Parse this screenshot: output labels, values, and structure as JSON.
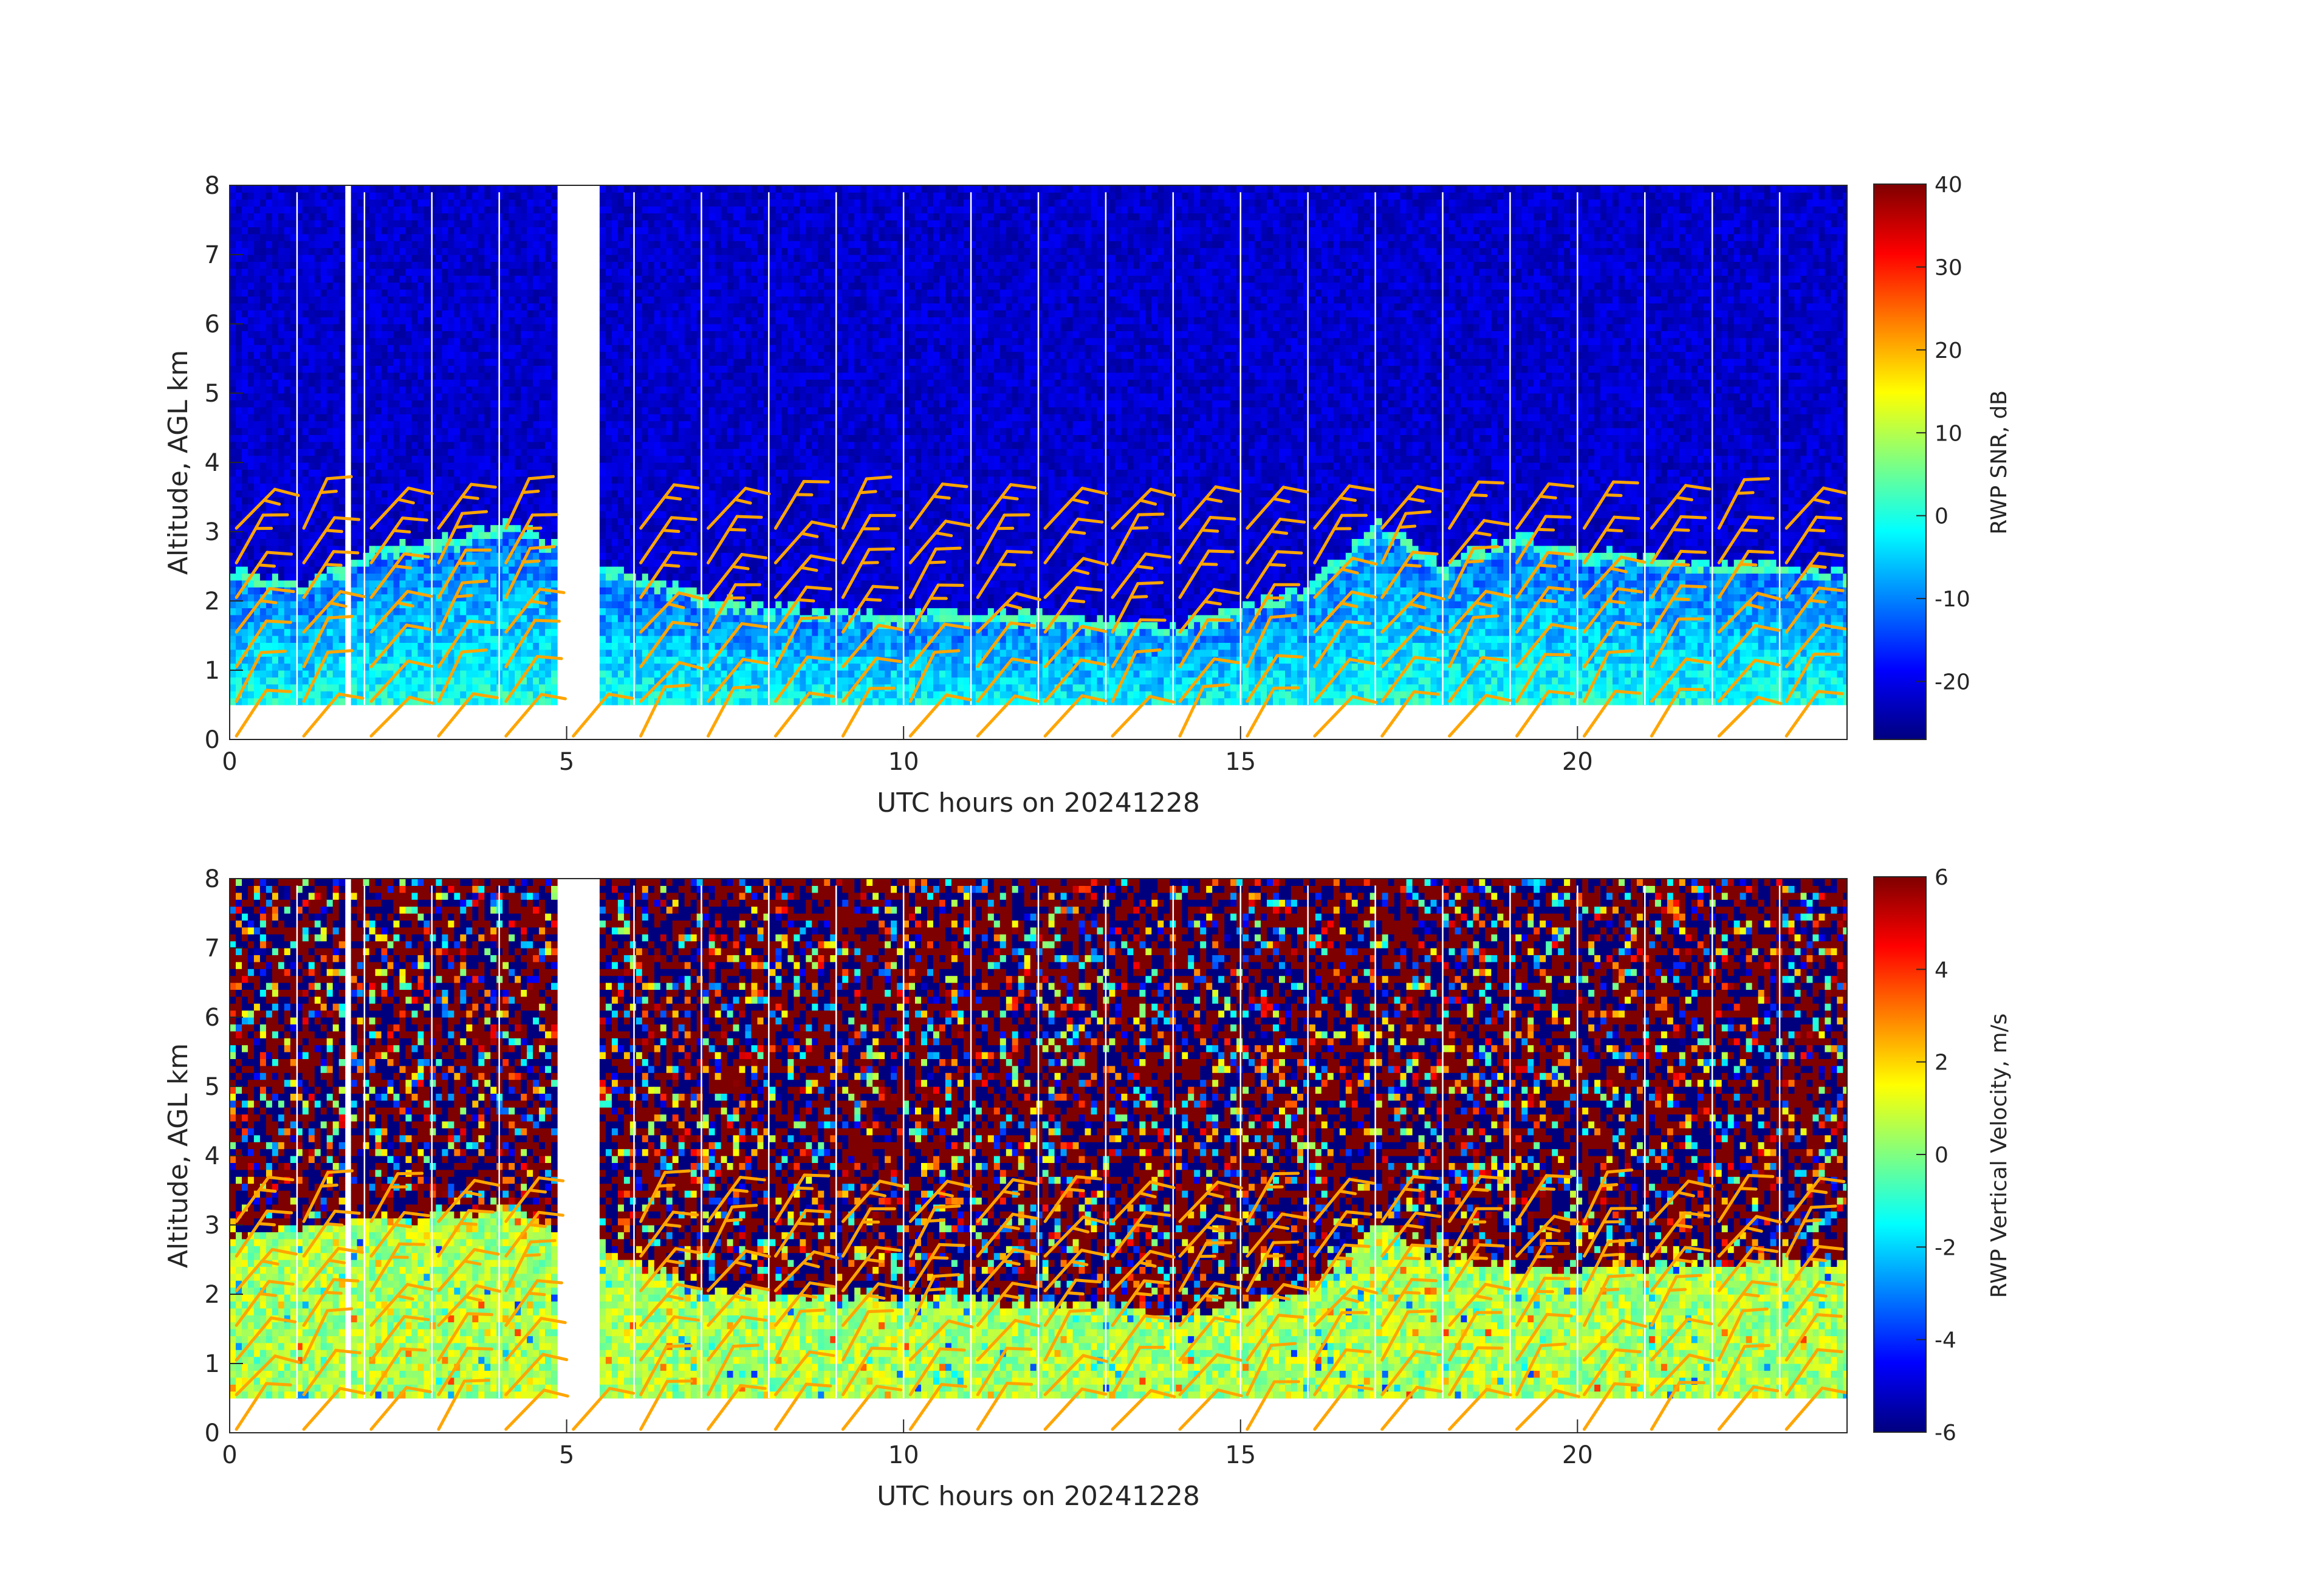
{
  "chart_data": [
    {
      "type": "heatmap",
      "xlabel": "UTC hours on 20241228",
      "ylabel": "Altitude, AGL km",
      "xlim": [
        0,
        24
      ],
      "ylim": [
        0,
        8
      ],
      "xticks": [
        0,
        5,
        10,
        15,
        20
      ],
      "yticks": [
        0,
        1,
        2,
        3,
        4,
        5,
        6,
        7,
        8
      ],
      "data_altitude_range_km": [
        0.5,
        7.9
      ],
      "data_gaps_utc_hours": [
        [
          1.72,
          1.78
        ],
        [
          1.85,
          1.93
        ],
        [
          4.9,
          5.5
        ]
      ],
      "colorbar": {
        "label": "RWP SNR, dB",
        "range": [
          -27,
          40
        ],
        "ticks": [
          -20,
          -10,
          0,
          10,
          20,
          30,
          40
        ],
        "colormap": "jet"
      },
      "field_description_levels": {
        "background_dB": -20,
        "boundary_layer_dB": 0,
        "boundary_layer_top_km": [
          [
            0,
            2.4
          ],
          [
            1,
            2.2
          ],
          [
            2,
            2.7
          ],
          [
            3,
            2.8
          ],
          [
            4,
            3.1
          ],
          [
            5.5,
            2.5
          ],
          [
            7,
            2.0
          ],
          [
            9,
            1.8
          ],
          [
            11,
            1.8
          ],
          [
            13,
            1.7
          ],
          [
            14,
            1.6
          ],
          [
            16,
            2.2
          ],
          [
            17,
            3.1
          ],
          [
            18,
            2.5
          ],
          [
            19,
            2.9
          ],
          [
            20,
            2.7
          ],
          [
            22,
            2.5
          ],
          [
            24,
            2.4
          ]
        ]
      },
      "overlay": {
        "type": "wind_barbs",
        "color": "#FFA500",
        "times_utc": [
          0,
          1,
          2,
          3,
          4,
          5,
          6,
          7,
          8,
          9,
          10,
          11,
          12,
          13,
          14,
          15,
          16,
          17,
          18,
          19,
          20,
          21,
          22,
          23
        ],
        "altitudes_km": [
          0.0,
          0.5,
          1.0,
          1.5,
          2.0,
          2.5,
          3.0
        ]
      }
    },
    {
      "type": "heatmap",
      "xlabel": "UTC hours on 20241228",
      "ylabel": "Altitude, AGL km",
      "xlim": [
        0,
        24
      ],
      "ylim": [
        0,
        8
      ],
      "xticks": [
        0,
        5,
        10,
        15,
        20
      ],
      "yticks": [
        0,
        1,
        2,
        3,
        4,
        5,
        6,
        7,
        8
      ],
      "data_altitude_range_km": [
        0.5,
        7.9
      ],
      "data_gaps_utc_hours": [
        [
          1.72,
          1.78
        ],
        [
          1.85,
          1.93
        ],
        [
          4.9,
          5.5
        ]
      ],
      "colorbar": {
        "label": "RWP Vertical Velocity, m/s",
        "range": [
          -6,
          6
        ],
        "ticks": [
          -6,
          -4,
          -2,
          0,
          2,
          4,
          6
        ],
        "colormap": "jet"
      },
      "field_description_levels": {
        "above_boundary_layer": "noise, alternating -6 to 6 m/s",
        "boundary_layer_m_s": 0.5,
        "boundary_layer_top_km": [
          [
            0,
            2.8
          ],
          [
            2,
            3.0
          ],
          [
            4,
            3.2
          ],
          [
            5.5,
            2.6
          ],
          [
            7,
            2.0
          ],
          [
            10,
            1.9
          ],
          [
            13,
            1.8
          ],
          [
            14,
            1.6
          ],
          [
            16,
            2.0
          ],
          [
            17,
            3.0
          ],
          [
            18,
            2.4
          ],
          [
            20,
            2.3
          ],
          [
            22,
            2.4
          ],
          [
            24,
            2.4
          ]
        ]
      },
      "overlay": {
        "type": "wind_barbs",
        "color": "#FFA500",
        "times_utc": [
          0,
          1,
          2,
          3,
          4,
          5,
          6,
          7,
          8,
          9,
          10,
          11,
          12,
          13,
          14,
          15,
          16,
          17,
          18,
          19,
          20,
          21,
          22,
          23
        ],
        "altitudes_km": [
          0.0,
          0.5,
          1.0,
          1.5,
          2.0,
          2.5,
          3.0
        ]
      }
    }
  ]
}
